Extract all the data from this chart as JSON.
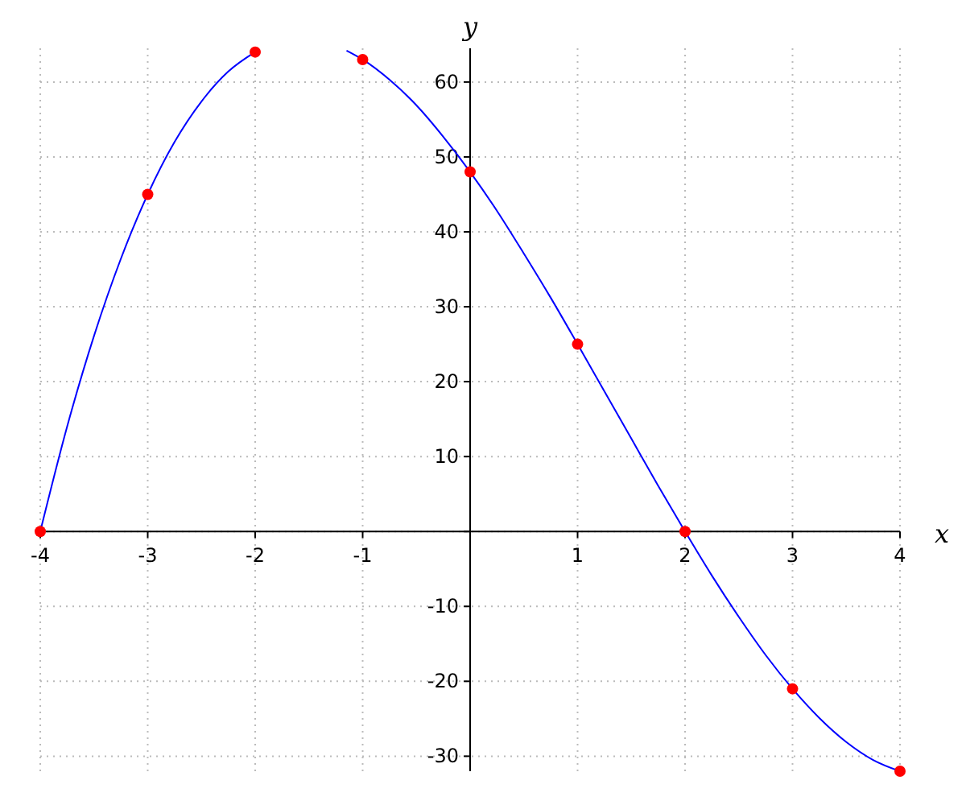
{
  "chart_data": {
    "type": "line",
    "xlabel": "x",
    "ylabel": "y",
    "xlim": [
      -4,
      4
    ],
    "ylim": [
      -32,
      64.5
    ],
    "xticks": [
      -4,
      -3,
      -2,
      -1,
      {
        "value": 0,
        "label": null
      },
      1,
      2,
      3,
      4
    ],
    "yticks": [
      -30,
      -20,
      -10,
      {
        "value": 0,
        "label": null
      },
      10,
      20,
      30,
      40,
      50,
      60
    ],
    "grid": true,
    "series": [
      {
        "color": "#0000ff",
        "x": [
          -4,
          -3.75,
          -3.5,
          -3.25,
          -3,
          -2.75,
          -2.5,
          -2.25,
          -2,
          -1.75,
          -1.5,
          -1.25,
          -1.15,
          -1,
          -0.75,
          -0.5,
          -0.25,
          0,
          0.25,
          0.5,
          0.75,
          1,
          1.25,
          1.5,
          1.75,
          2,
          2.25,
          2.5,
          2.75,
          3,
          3.25,
          3.5,
          3.75,
          4
        ],
        "values": [
          0,
          14,
          26.1,
          36.4,
          45,
          52,
          57.4,
          61.4,
          64,
          null,
          null,
          null,
          64.2,
          63,
          60.3,
          56.9,
          52.7,
          48,
          42.8,
          37.1,
          31.2,
          25,
          18.7,
          12.4,
          6.1,
          0,
          -5.9,
          -11.4,
          -16.5,
          -21,
          -24.9,
          -28.1,
          -30.5,
          -32
        ]
      },
      {
        "type": "scatter",
        "color": "#ff0000",
        "marker": "circle",
        "x": [
          -4,
          -3,
          -2,
          -1,
          0,
          1,
          2,
          3,
          4
        ],
        "values": [
          0,
          45,
          64,
          63,
          48,
          25,
          0,
          -21,
          -32
        ]
      }
    ]
  }
}
